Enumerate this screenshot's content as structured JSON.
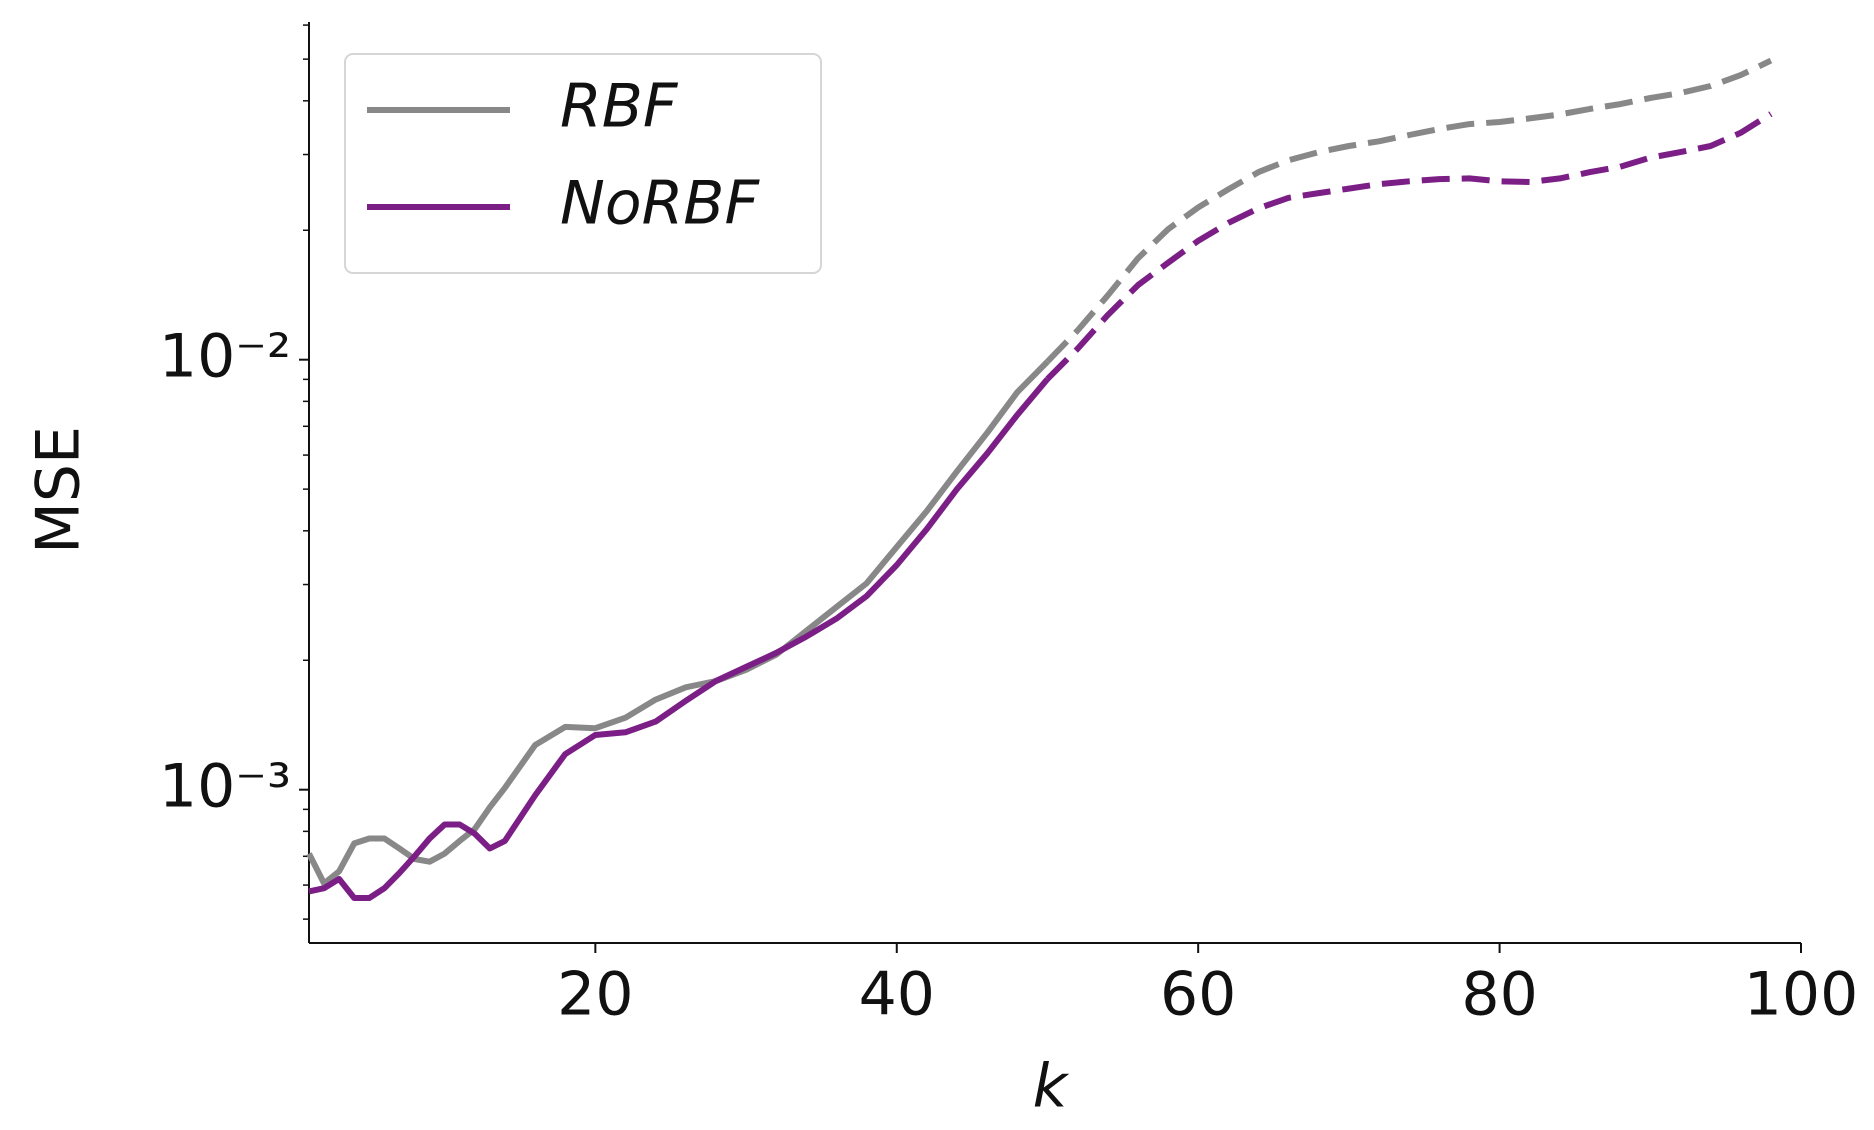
{
  "chart_data": {
    "type": "line",
    "x_label": "k",
    "y_label": "MSE",
    "y_log_scale": true,
    "xlim": [
      1,
      100
    ],
    "xticks": [
      20,
      40,
      60,
      80,
      100
    ],
    "ylim": [
      0.00044,
      0.061
    ],
    "yticks": [
      {
        "value": 0.001,
        "label": "10⁻³"
      },
      {
        "value": 0.01,
        "label": "10⁻²"
      }
    ],
    "yminorticks": [
      0.0005,
      0.0006,
      0.0007,
      0.0008,
      0.0009,
      0.002,
      0.003,
      0.004,
      0.005,
      0.006,
      0.007,
      0.008,
      0.009,
      0.02,
      0.03,
      0.04,
      0.05,
      0.06
    ],
    "dashed_from_x": 50,
    "legend_position": "upper left",
    "x": [
      1,
      2,
      3,
      4,
      5,
      6,
      7,
      8,
      9,
      10,
      11,
      12,
      13,
      14,
      16,
      18,
      20,
      22,
      24,
      26,
      28,
      30,
      32,
      34,
      36,
      38,
      40,
      42,
      44,
      46,
      48,
      50,
      52,
      54,
      56,
      58,
      60,
      62,
      64,
      66,
      68,
      70,
      72,
      74,
      76,
      78,
      80,
      82,
      84,
      86,
      88,
      90,
      92,
      94,
      96,
      98
    ],
    "series": [
      {
        "name": "RBF",
        "color": "#888888",
        "values": [
          0.00071,
          0.000605,
          0.000646,
          0.00075,
          0.00077,
          0.00077,
          0.00073,
          0.00069,
          0.00068,
          0.00071,
          0.00076,
          0.00081,
          0.00091,
          0.00101,
          0.00127,
          0.0014,
          0.00139,
          0.00147,
          0.00162,
          0.00173,
          0.00179,
          0.0019,
          0.00206,
          0.00234,
          0.00266,
          0.00302,
          0.00367,
          0.00445,
          0.0055,
          0.00676,
          0.0084,
          0.0099,
          0.0117,
          0.0141,
          0.0172,
          0.0201,
          0.0226,
          0.0249,
          0.0273,
          0.0291,
          0.0304,
          0.0314,
          0.0322,
          0.0333,
          0.0344,
          0.0353,
          0.0357,
          0.0364,
          0.0372,
          0.0383,
          0.0393,
          0.0406,
          0.0417,
          0.0433,
          0.0459,
          0.0496
        ]
      },
      {
        "name": "NoRBF",
        "color": "#7b1f86",
        "values": [
          0.00058,
          0.00059,
          0.00062,
          0.00056,
          0.00056,
          0.00059,
          0.00064,
          0.0007,
          0.00077,
          0.00083,
          0.00083,
          0.00079,
          0.00073,
          0.00076,
          0.00097,
          0.00121,
          0.00134,
          0.00136,
          0.00144,
          0.00161,
          0.00179,
          0.00193,
          0.00208,
          0.00227,
          0.0025,
          0.00282,
          0.00333,
          0.00404,
          0.005,
          0.00605,
          0.00744,
          0.00902,
          0.0106,
          0.0127,
          0.0149,
          0.0168,
          0.0189,
          0.0208,
          0.0225,
          0.0238,
          0.0244,
          0.025,
          0.0256,
          0.026,
          0.0263,
          0.0264,
          0.026,
          0.0259,
          0.0264,
          0.0273,
          0.0281,
          0.0295,
          0.0304,
          0.0314,
          0.0337,
          0.0373
        ]
      }
    ]
  }
}
